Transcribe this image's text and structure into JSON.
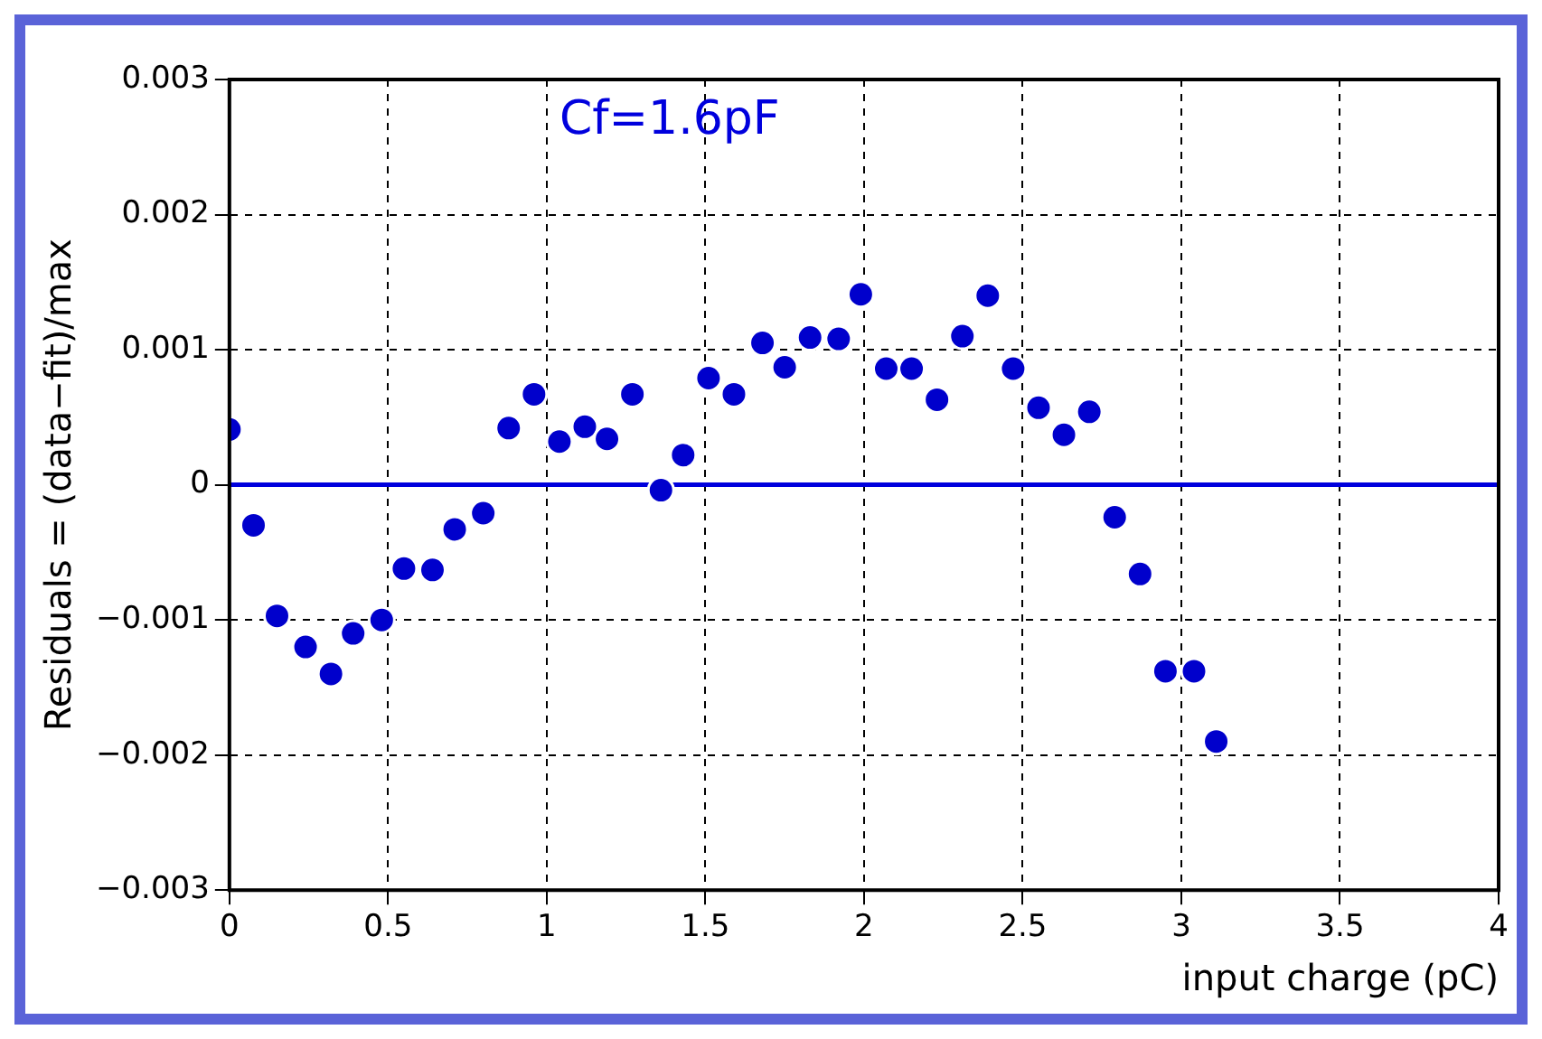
{
  "chart_data": {
    "type": "scatter",
    "xlabel": "input charge (pC)",
    "ylabel": "Residuals = (data−fit)/max",
    "annotations": [
      "Cf=1.6pF"
    ],
    "x": [
      0,
      0.076,
      0.15,
      0.24,
      0.32,
      0.39,
      0.48,
      0.55,
      0.64,
      0.71,
      0.8,
      0.88,
      0.96,
      1.04,
      1.12,
      1.19,
      1.27,
      1.36,
      1.43,
      1.51,
      1.59,
      1.68,
      1.75,
      1.83,
      1.92,
      1.99,
      2.07,
      2.15,
      2.23,
      2.31,
      2.39,
      2.47,
      2.55,
      2.63,
      2.71,
      2.79,
      2.87,
      2.95,
      3.04,
      3.11
    ],
    "series": [
      {
        "color": "#0000cc",
        "values": [
          0.00041,
          -0.0003,
          -0.00097,
          -0.0012,
          -0.0014,
          -0.0011,
          -0.001,
          -0.00062,
          -0.00063,
          -0.00033,
          -0.00021,
          0.00042,
          0.00067,
          0.00032,
          0.00043,
          0.00034,
          0.00067,
          -4e-05,
          0.00022,
          0.00079,
          0.00067,
          0.00105,
          0.00087,
          0.00109,
          0.00108,
          0.00141,
          0.00086,
          0.00086,
          0.00063,
          0.0011,
          0.0014,
          0.00086,
          0.00057,
          0.00037,
          0.00054,
          -0.00024,
          -0.00066,
          -0.00138,
          -0.00138,
          -0.0019
        ]
      }
    ],
    "xlim": [
      0,
      4
    ],
    "xticks": [
      0,
      0.5,
      1,
      1.5,
      2,
      2.5,
      3,
      3.5,
      4
    ],
    "ylim": [
      -0.003,
      0.003
    ],
    "yticks": [
      -0.003,
      -0.002,
      -0.001,
      0,
      0.001,
      0.002,
      0.003
    ],
    "ref_lines": [
      {
        "axis": "y",
        "value": 0,
        "color": "#0000dd",
        "line_style": "solid"
      }
    ],
    "grid": true,
    "marker": "circle",
    "legend": false
  }
}
